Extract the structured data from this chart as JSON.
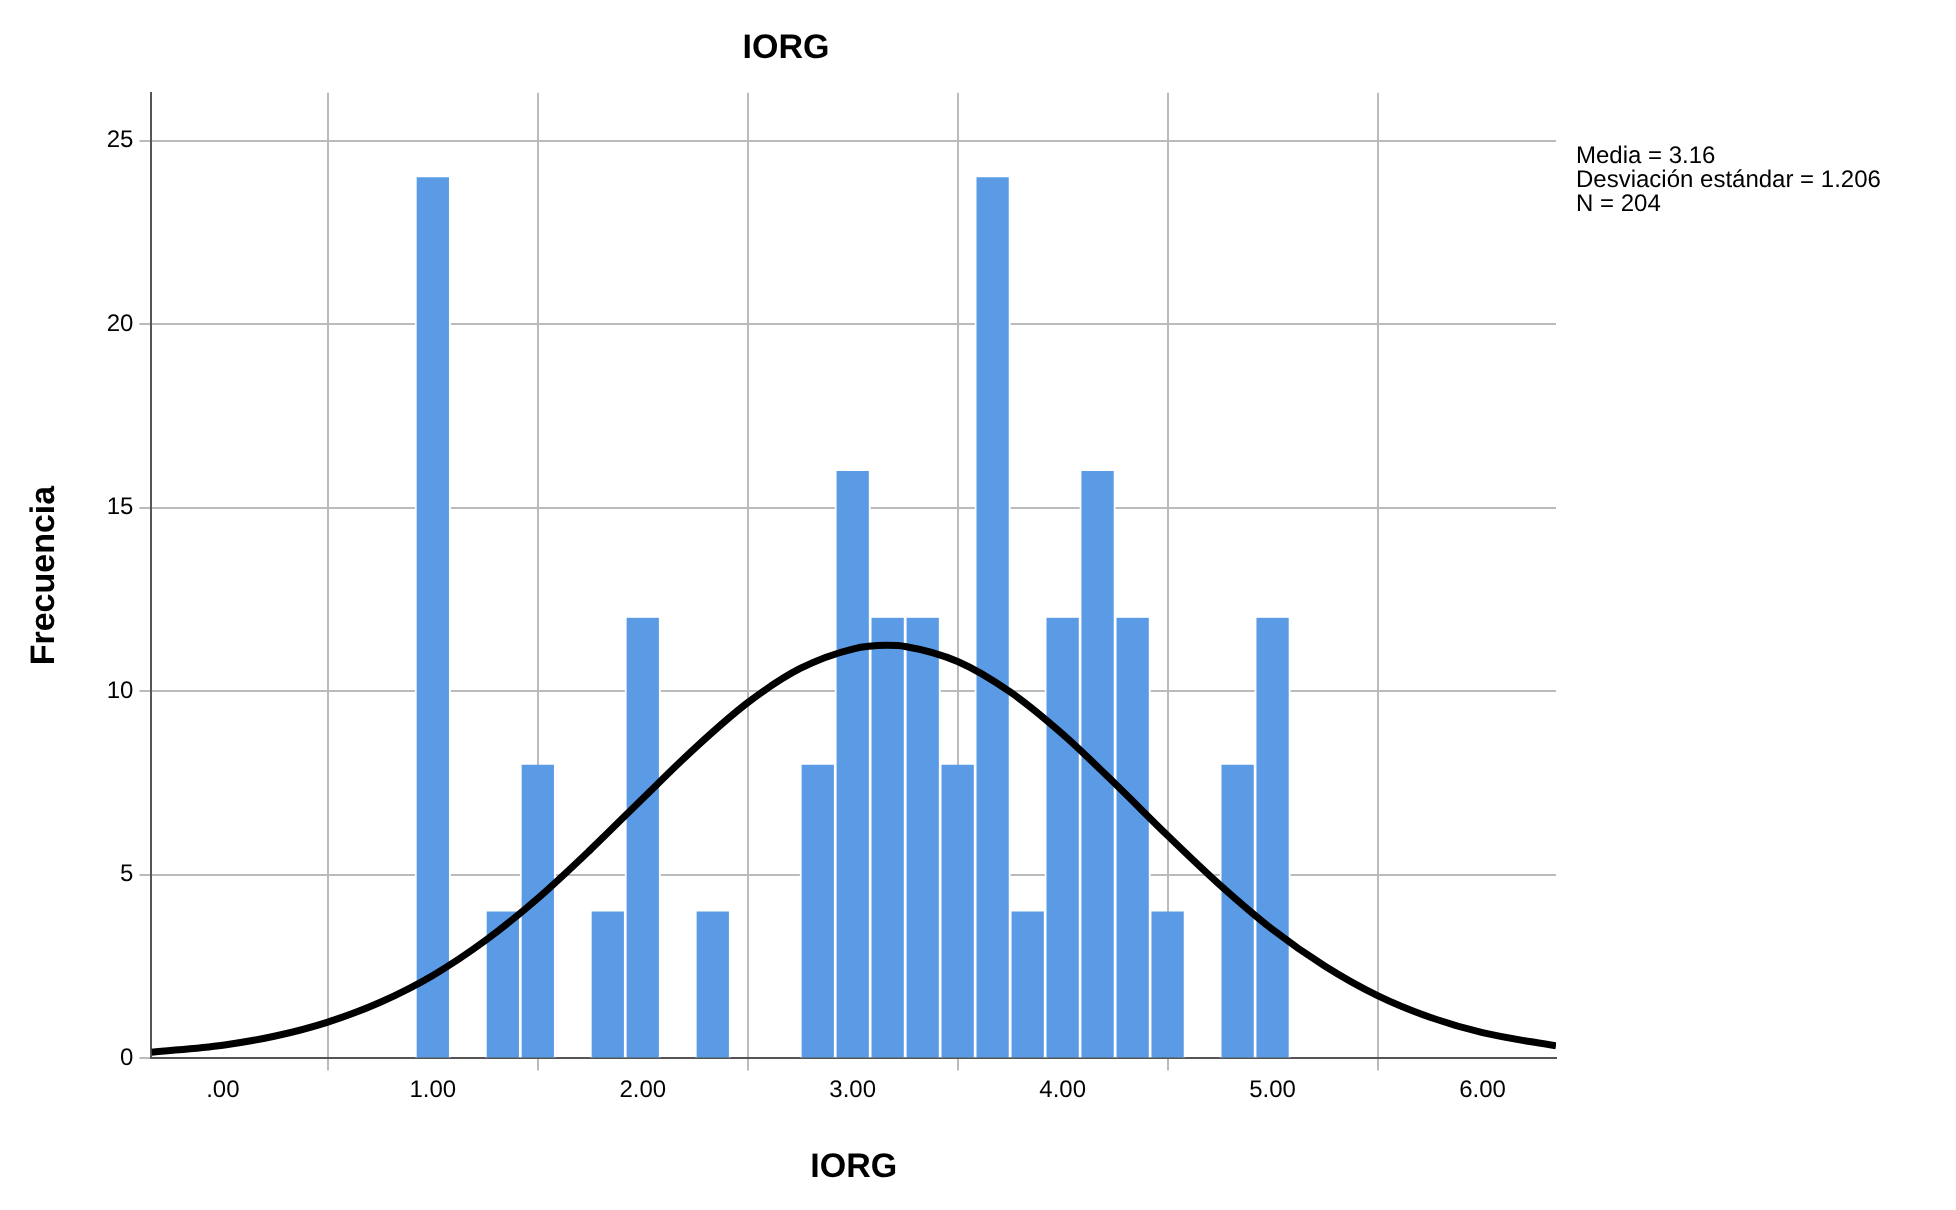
{
  "chart_data": {
    "type": "histogram",
    "title": "IORG",
    "xlabel": "IORG",
    "ylabel": "Frecuencia",
    "annotations": [
      "Media = 3.16",
      "Desviación estándar = 1.206",
      "N = 204"
    ],
    "bins": [
      0.917,
      1.083,
      1.25,
      1.417,
      1.583,
      1.75,
      1.917,
      2.083,
      2.25,
      2.417,
      2.583,
      2.75,
      2.917,
      3.083,
      3.25,
      3.417,
      3.583,
      3.75,
      3.917,
      4.083,
      4.25,
      4.417,
      4.583,
      4.75,
      4.917,
      5.083
    ],
    "values": [
      24,
      0,
      4,
      8,
      0,
      4,
      12,
      0,
      4,
      0,
      0,
      8,
      16,
      12,
      12,
      8,
      24,
      4,
      12,
      16,
      12,
      4,
      0,
      8,
      12
    ],
    "color": "#5b9be6",
    "series": [
      {
        "type": "line",
        "color": "#000000",
        "x": [
          -0.34,
          0,
          0.25,
          0.5,
          0.75,
          1,
          1.25,
          1.5,
          1.75,
          2,
          2.25,
          2.5,
          2.75,
          3,
          3.16,
          3.25,
          3.5,
          3.75,
          4,
          4.25,
          4.5,
          4.75,
          5,
          5.25,
          5.5,
          5.75,
          6,
          6.35
        ],
        "values": [
          0.17,
          0.36,
          0.61,
          0.99,
          1.53,
          2.26,
          3.21,
          4.36,
          5.68,
          7.08,
          8.46,
          9.69,
          10.62,
          11.15,
          11.25,
          11.22,
          10.81,
          9.98,
          8.83,
          7.48,
          6.07,
          4.72,
          3.51,
          2.51,
          1.71,
          1.12,
          0.7,
          0.34
        ]
      }
    ],
    "xlim": [
      -0.34,
      6.35
    ],
    "xticks": [
      {
        "value": 0,
        "label": ".00"
      },
      {
        "value": 1,
        "label": "1.00"
      },
      {
        "value": 2,
        "label": "2.00"
      },
      {
        "value": 3,
        "label": "3.00"
      },
      {
        "value": 4,
        "label": "4.00"
      },
      {
        "value": 5,
        "label": "5.00"
      },
      {
        "value": 6,
        "label": "6.00"
      }
    ],
    "ylim": [
      0,
      26.3
    ],
    "yticks": [
      0,
      5,
      10,
      15,
      20,
      25
    ],
    "grid": true,
    "legend": false,
    "marker": "none",
    "line_style": "solid"
  }
}
